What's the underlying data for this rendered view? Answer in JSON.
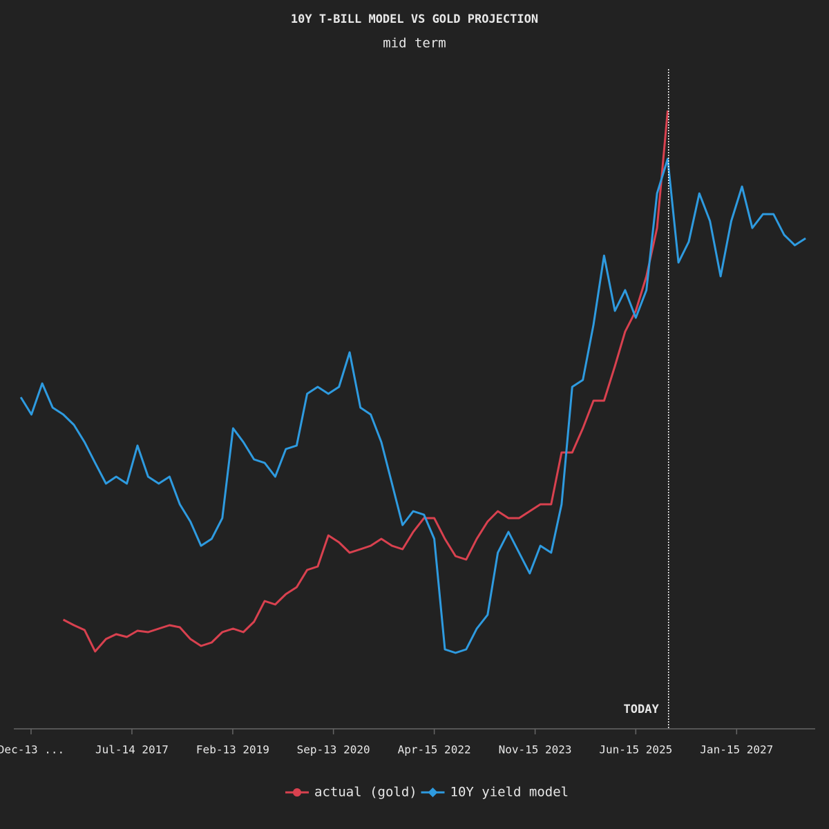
{
  "chart_data": {
    "type": "line",
    "title": "10Y T-BILL MODEL VS GOLD PROJECTION",
    "subtitle": "mid term",
    "x": [
      "2015-10-15",
      "2015-12-15",
      "2016-02-15",
      "2016-04-15",
      "2016-06-15",
      "2016-08-15",
      "2016-10-15",
      "2016-12-15",
      "2017-02-15",
      "2017-04-15",
      "2017-06-15",
      "2017-08-15",
      "2017-10-15",
      "2017-12-15",
      "2018-02-15",
      "2018-04-15",
      "2018-06-15",
      "2018-08-15",
      "2018-10-15",
      "2018-12-15",
      "2019-02-15",
      "2019-04-15",
      "2019-06-15",
      "2019-08-15",
      "2019-10-15",
      "2019-12-15",
      "2020-02-15",
      "2020-04-15",
      "2020-06-15",
      "2020-08-15",
      "2020-10-15",
      "2020-12-15",
      "2021-02-15",
      "2021-04-15",
      "2021-06-15",
      "2021-08-15",
      "2021-10-15",
      "2021-12-15",
      "2022-02-15",
      "2022-04-15",
      "2022-06-15",
      "2022-08-15",
      "2022-10-15",
      "2022-12-15",
      "2023-02-15",
      "2023-04-15",
      "2023-06-15",
      "2023-08-15",
      "2023-10-15",
      "2023-12-15",
      "2024-02-15",
      "2024-04-15",
      "2024-06-15",
      "2024-08-15",
      "2024-10-15",
      "2024-12-15",
      "2025-02-15",
      "2025-04-15",
      "2025-06-15",
      "2025-08-15",
      "2025-10-15",
      "2025-12-15",
      "2026-02-15",
      "2026-04-15",
      "2026-06-15",
      "2026-08-15",
      "2026-10-15",
      "2026-12-15",
      "2027-02-15",
      "2027-04-15",
      "2027-06-15",
      "2027-08-15",
      "2027-10-15",
      "2027-12-15",
      "2028-02-15"
    ],
    "series": [
      {
        "name": "actual (gold)",
        "color": "#d9414f",
        "marker": "circle",
        "values": [
          null,
          null,
          null,
          null,
          158,
          150,
          143,
          112,
          130,
          137,
          133,
          142,
          140,
          145,
          150,
          147,
          130,
          120,
          125,
          140,
          145,
          140,
          155,
          185,
          180,
          195,
          205,
          230,
          235,
          280,
          270,
          255,
          260,
          265,
          275,
          265,
          260,
          285,
          305,
          305,
          275,
          250,
          245,
          275,
          300,
          315,
          305,
          305,
          315,
          325,
          325,
          400,
          400,
          435,
          475,
          475,
          525,
          575,
          605,
          655,
          725,
          895,
          null,
          null,
          null,
          null,
          null,
          null,
          null,
          null,
          null,
          null,
          null,
          null,
          null
        ]
      },
      {
        "name": "10Y yield model",
        "color": "#2e9be0",
        "marker": "diamond",
        "values": [
          480,
          455,
          500,
          465,
          455,
          440,
          415,
          385,
          355,
          365,
          355,
          410,
          365,
          355,
          365,
          325,
          300,
          265,
          275,
          305,
          435,
          415,
          390,
          385,
          365,
          405,
          410,
          485,
          495,
          485,
          495,
          545,
          465,
          455,
          415,
          355,
          295,
          315,
          310,
          275,
          115,
          110,
          115,
          145,
          165,
          255,
          285,
          255,
          225,
          265,
          255,
          325,
          495,
          505,
          585,
          685,
          605,
          635,
          595,
          635,
          775,
          825,
          675,
          705,
          775,
          735,
          655,
          735,
          785,
          725,
          745,
          745,
          715,
          700,
          710
        ]
      }
    ],
    "xlim": [
      "2015-09-05",
      "2028-04-10"
    ],
    "xticks": [
      {
        "value": "2015-12-13",
        "label": "Dec-13 ..."
      },
      {
        "value": "2017-07-14",
        "label": "Jul-14 2017"
      },
      {
        "value": "2019-02-13",
        "label": "Feb-13 2019"
      },
      {
        "value": "2020-09-13",
        "label": "Sep-13 2020"
      },
      {
        "value": "2022-04-15",
        "label": "Apr-15 2022"
      },
      {
        "value": "2023-11-15",
        "label": "Nov-15 2023"
      },
      {
        "value": "2025-06-15",
        "label": "Jun-15 2025"
      },
      {
        "value": "2027-01-15",
        "label": "Jan-15 2027"
      }
    ],
    "ylim": [
      0,
      955
    ],
    "annotation": {
      "x": "2025-12-20",
      "label": "TODAY"
    },
    "legend": "bottom"
  }
}
